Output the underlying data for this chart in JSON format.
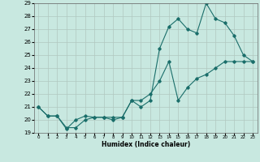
{
  "title": "",
  "xlabel": "Humidex (Indice chaleur)",
  "xlim": [
    -0.5,
    23.5
  ],
  "ylim": [
    19,
    29
  ],
  "yticks": [
    19,
    20,
    21,
    22,
    23,
    24,
    25,
    26,
    27,
    28,
    29
  ],
  "xticks": [
    0,
    1,
    2,
    3,
    4,
    5,
    6,
    7,
    8,
    9,
    10,
    11,
    12,
    13,
    14,
    15,
    16,
    17,
    18,
    19,
    20,
    21,
    22,
    23
  ],
  "background_color": "#c8e8e0",
  "grid_color": "#b0c8c0",
  "line_color": "#1a6e6a",
  "series1_x": [
    0,
    1,
    2,
    3,
    4,
    5,
    6,
    7,
    8,
    9,
    10,
    11,
    12,
    13,
    14,
    15,
    16,
    17,
    18,
    19,
    20,
    21,
    22,
    23
  ],
  "series1_y": [
    21.0,
    20.3,
    20.3,
    19.3,
    20.0,
    20.3,
    20.2,
    20.2,
    20.0,
    20.2,
    21.5,
    21.0,
    21.5,
    25.5,
    27.2,
    27.8,
    27.0,
    26.7,
    29.0,
    27.8,
    27.5,
    26.5,
    25.0,
    24.5
  ],
  "series2_x": [
    0,
    1,
    2,
    3,
    4,
    5,
    6,
    7,
    8,
    9,
    10,
    11,
    12,
    13,
    14,
    15,
    16,
    17,
    18,
    19,
    20,
    21,
    22,
    23
  ],
  "series2_y": [
    21.0,
    20.3,
    20.3,
    19.4,
    19.4,
    20.0,
    20.2,
    20.2,
    20.2,
    20.2,
    21.5,
    21.5,
    22.0,
    23.0,
    24.5,
    21.5,
    22.5,
    23.2,
    23.5,
    24.0,
    24.5,
    24.5,
    24.5,
    24.5
  ],
  "marker": "D",
  "markersize": 1.8,
  "linewidth": 0.8
}
